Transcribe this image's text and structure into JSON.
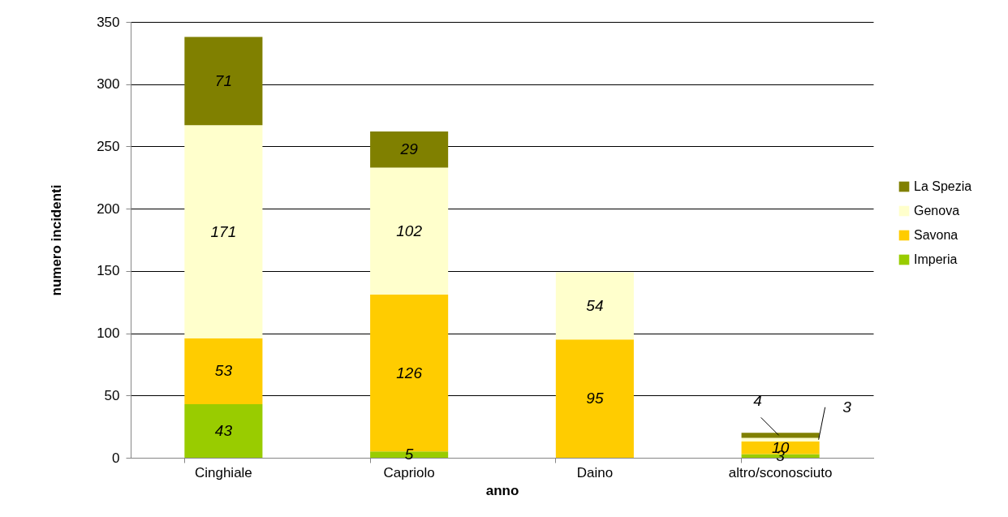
{
  "chart_data": {
    "type": "bar",
    "stacked": true,
    "xlabel": "anno",
    "ylabel": "numero incidenti",
    "categories": [
      "Cinghiale",
      "Capriolo",
      "Daino",
      "altro/sconosciuto"
    ],
    "series": [
      {
        "name": "Imperia",
        "color": "#99cc00",
        "values": [
          43,
          5,
          0,
          3
        ],
        "value_labels": [
          "43",
          "5",
          null,
          "3"
        ]
      },
      {
        "name": "Savona",
        "color": "#ffcc00",
        "values": [
          53,
          126,
          95,
          10
        ],
        "value_labels": [
          "53",
          "126",
          "95",
          "10"
        ]
      },
      {
        "name": "Genova",
        "color": "#ffffcc",
        "values": [
          171,
          102,
          54,
          3
        ],
        "value_labels": [
          "171",
          "102",
          "54",
          "3"
        ]
      },
      {
        "name": "La Spezia",
        "color": "#808000",
        "values": [
          71,
          29,
          0,
          4
        ],
        "value_labels": [
          "71",
          "29",
          null,
          "4"
        ]
      }
    ],
    "ylim": [
      0,
      350
    ],
    "yticks": [
      0,
      50,
      100,
      150,
      200,
      250,
      300,
      350
    ],
    "grid": "y",
    "legend": "right"
  }
}
